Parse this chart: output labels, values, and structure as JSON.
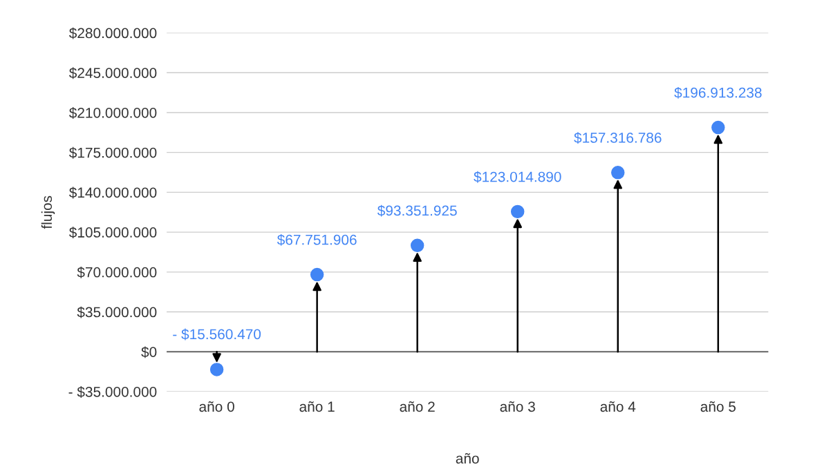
{
  "chart_data": {
    "type": "lollipop",
    "xlabel": "año",
    "ylabel": "flujos",
    "categories": [
      "año 0",
      "año 1",
      "año 2",
      "año 3",
      "año 4",
      "año 5"
    ],
    "series": [
      {
        "color": "#4285f4",
        "values": [
          -15560470,
          67751906,
          93351925,
          123014890,
          157316786,
          196913238
        ],
        "value_labels": [
          "- $15.560.470",
          "$67.751.906",
          "$93.351.925",
          "$123.014.890",
          "$157.316.786",
          "$196.913.238"
        ]
      }
    ],
    "ylim": [
      -35000000,
      280000000
    ],
    "yticks": [
      {
        "value": -35000000,
        "label": "- $35.000.000"
      },
      {
        "value": 0,
        "label": "$0"
      },
      {
        "value": 35000000,
        "label": "$35.000.000"
      },
      {
        "value": 70000000,
        "label": "$70.000.000"
      },
      {
        "value": 105000000,
        "label": "$105.000.000"
      },
      {
        "value": 140000000,
        "label": "$140.000.000"
      },
      {
        "value": 175000000,
        "label": "$175.000.000"
      },
      {
        "value": 210000000,
        "label": "$210.000.000"
      },
      {
        "value": 245000000,
        "label": "$245.000.000"
      },
      {
        "value": 280000000,
        "label": "$280.000.000"
      }
    ],
    "ref_lines": [
      {
        "axis": "y",
        "value": 0,
        "color": "#666666"
      }
    ],
    "grid": "y",
    "marker": "circle",
    "legend": false
  }
}
